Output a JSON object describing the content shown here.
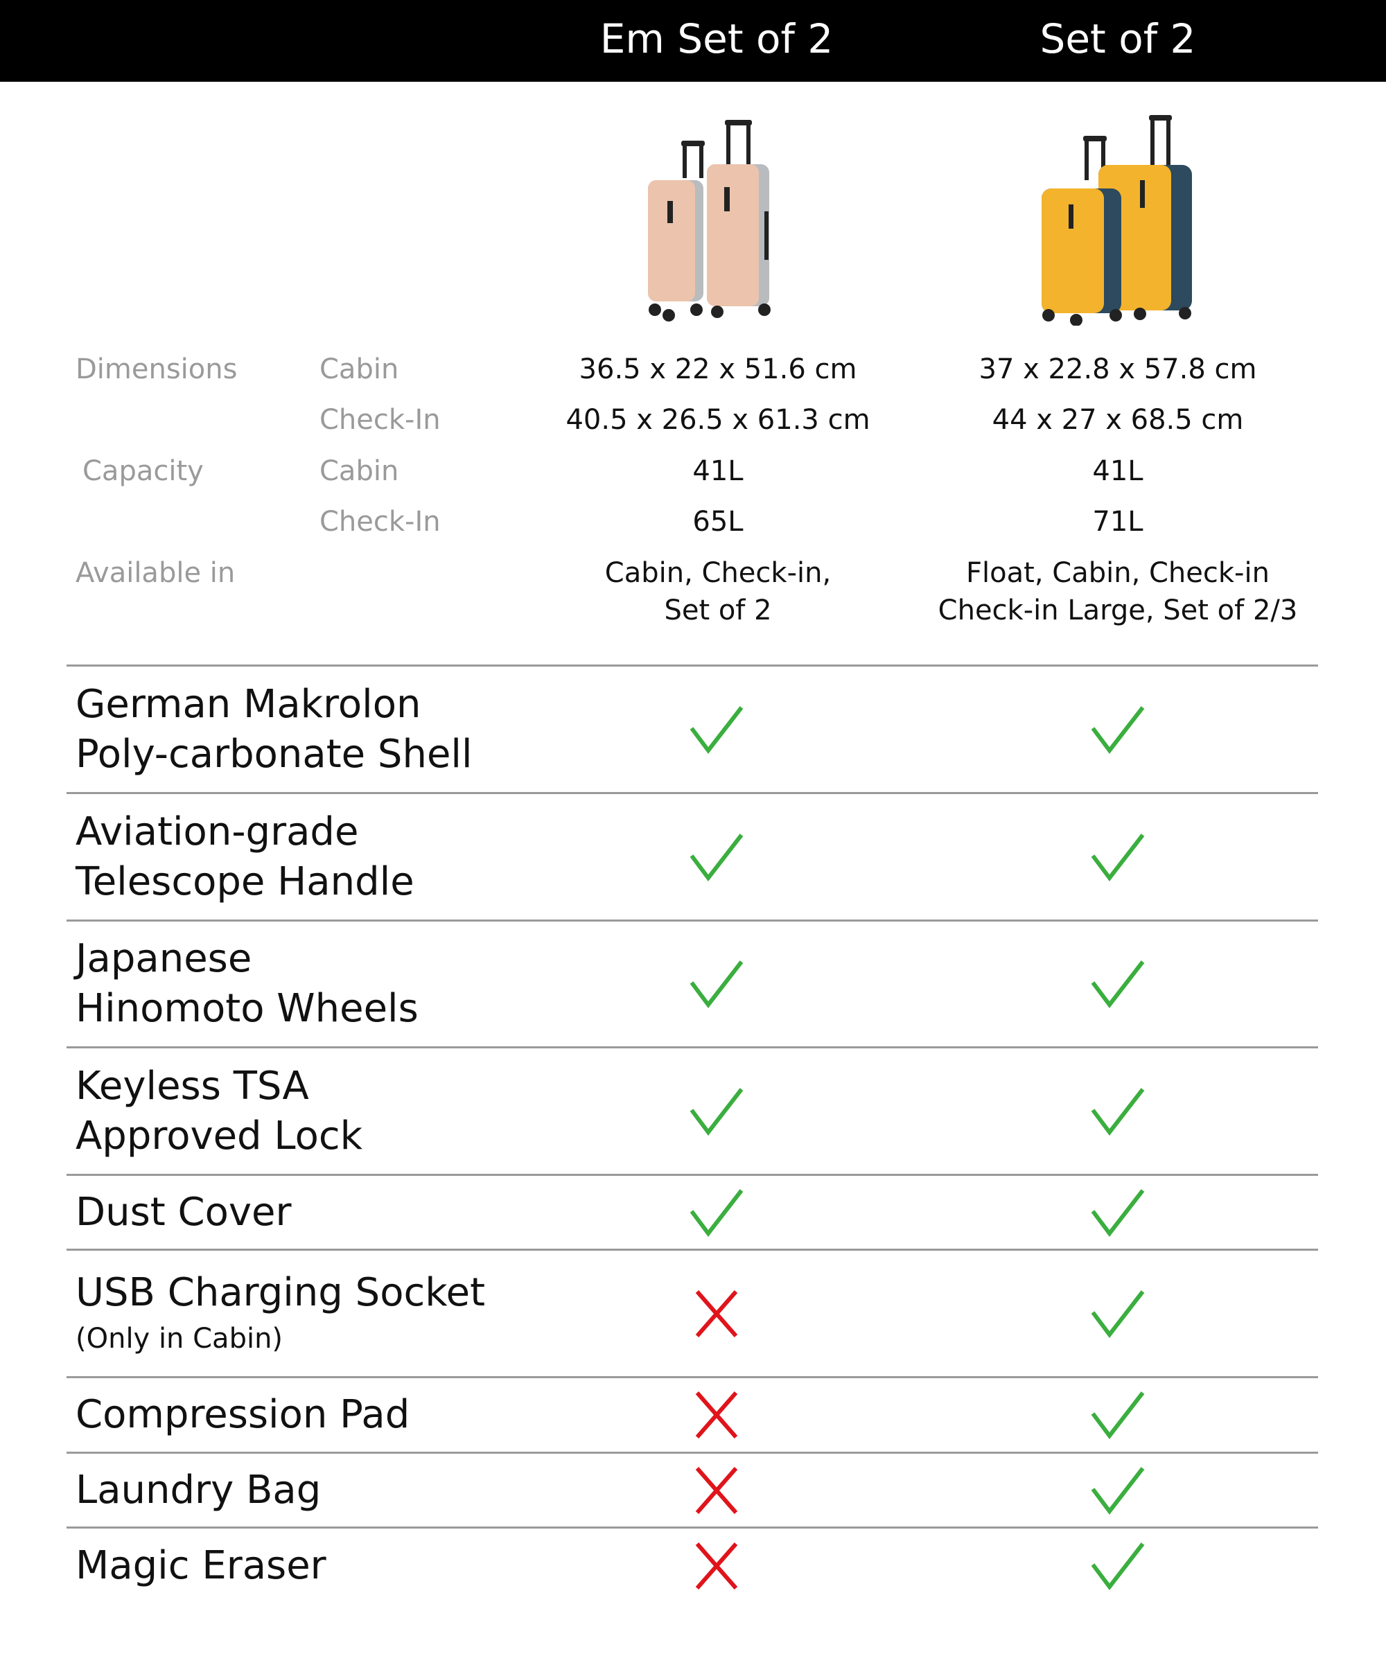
{
  "header": {
    "columns": [
      "Em Set of 2",
      "Set of 2"
    ]
  },
  "colors": {
    "check": "#3aae3e",
    "cross": "#e0141b",
    "header_bg": "#000000",
    "label": "#9a9a9a"
  },
  "products": [
    {
      "name": "Em Set of 2",
      "image": "pink-luggage-set-photo"
    },
    {
      "name": "Set of 2",
      "image": "yellow-navy-luggage-set-photo"
    }
  ],
  "specs": {
    "dimensions_label": "Dimensions",
    "capacity_label": "Capacity",
    "available_label": "Available in",
    "cabin_label": "Cabin",
    "checkin_label": "Check-In",
    "dimensions": {
      "cabin": [
        "36.5 x 22 x 51.6 cm",
        "37 x 22.8 x 57.8 cm"
      ],
      "checkin": [
        "40.5 x 26.5 x 61.3 cm",
        "44 x 27 x 68.5 cm"
      ]
    },
    "capacity": {
      "cabin": [
        "41L",
        "41L"
      ],
      "checkin": [
        "65L",
        "71L"
      ]
    },
    "available": [
      [
        "Cabin, Check-in,",
        "Set of 2"
      ],
      [
        "Float, Cabin, Check-in",
        "Check-in Large, Set of 2/3"
      ]
    ]
  },
  "features": [
    {
      "label": [
        "German Makrolon",
        "Poly-carbonate Shell"
      ],
      "values": [
        true,
        true
      ]
    },
    {
      "label": [
        "Aviation-grade",
        "Telescope Handle"
      ],
      "values": [
        true,
        true
      ]
    },
    {
      "label": [
        "Japanese",
        "Hinomoto Wheels"
      ],
      "values": [
        true,
        true
      ]
    },
    {
      "label": [
        "Keyless TSA",
        "Approved Lock"
      ],
      "values": [
        true,
        true
      ]
    },
    {
      "label": [
        "Dust Cover"
      ],
      "values": [
        true,
        true
      ]
    },
    {
      "label": [
        "USB Charging Socket"
      ],
      "sub": "(Only in Cabin)",
      "values": [
        false,
        true
      ]
    },
    {
      "label": [
        "Compression Pad"
      ],
      "values": [
        false,
        true
      ]
    },
    {
      "label": [
        "Laundry Bag"
      ],
      "values": [
        false,
        true
      ]
    },
    {
      "label": [
        "Magic Eraser"
      ],
      "values": [
        false,
        true
      ]
    }
  ]
}
